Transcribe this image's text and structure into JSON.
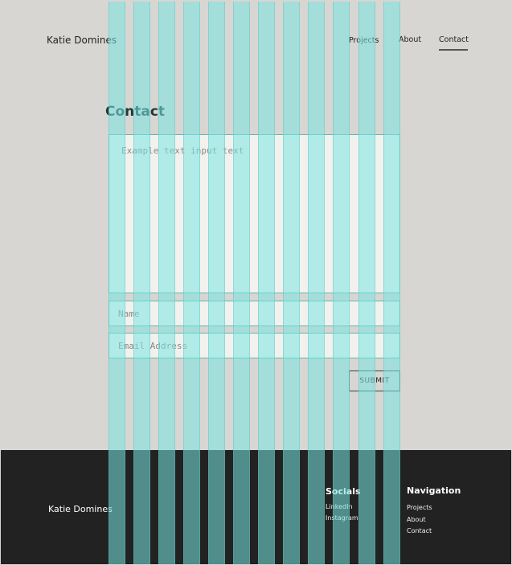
{
  "header": {
    "brand": "Katie Domines",
    "nav": [
      {
        "label": "Projects"
      },
      {
        "label": "About"
      },
      {
        "label": "Contact",
        "active": true
      }
    ]
  },
  "main": {
    "title": "Contact",
    "message_placeholder": "Example text input text",
    "name_placeholder": "Name",
    "email_placeholder": "Email Address",
    "submit_label": "SUBMIT"
  },
  "footer": {
    "brand": "Katie Domines",
    "socials_title": "Socials",
    "socials": [
      "LinkedIn",
      "Instagram"
    ],
    "navigation_title": "Navigation",
    "navigation": [
      "Projects",
      "About",
      "Contact"
    ]
  },
  "colors": {
    "background": "#d8d6d2",
    "footer": "#222222",
    "accent": "#5fb8b0",
    "grid_overlay": "#78e6e1"
  }
}
